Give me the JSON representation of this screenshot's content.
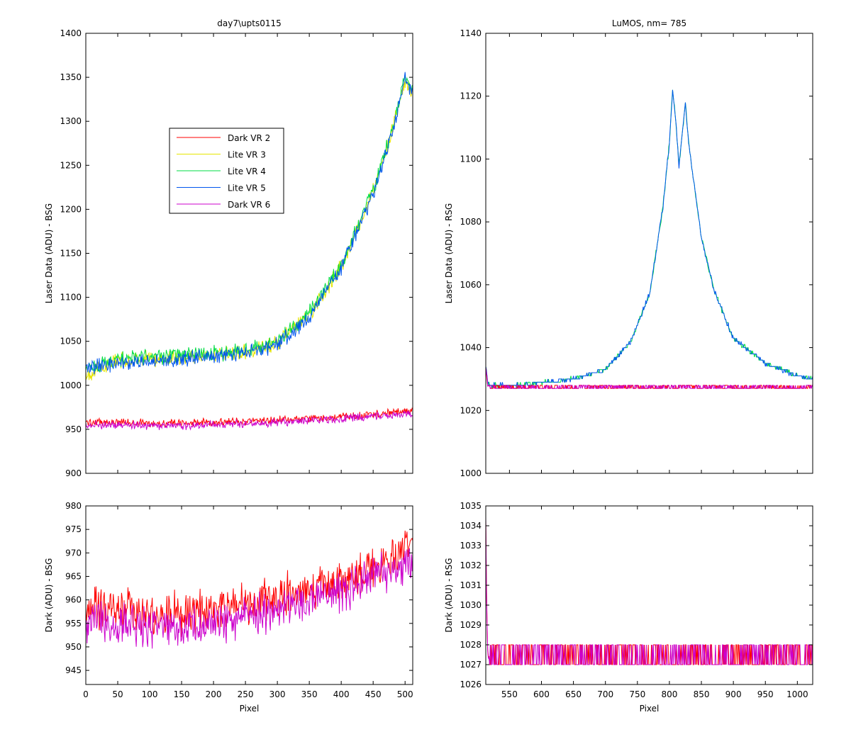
{
  "chart_data": [
    {
      "id": "tl",
      "type": "line",
      "title": "day7\\upts0115",
      "xlabel": "",
      "ylabel": "Laser Data (ADU) - BSG",
      "xlim": [
        0,
        512
      ],
      "ylim": [
        900,
        1400
      ],
      "xticks": [],
      "yticks": [
        900,
        950,
        1000,
        1050,
        1100,
        1150,
        1200,
        1250,
        1300,
        1350,
        1400
      ],
      "xtick_marks": [
        0,
        50,
        100,
        150,
        200,
        250,
        300,
        350,
        400,
        450,
        500
      ],
      "legend": {
        "placement": "upper-left-inside",
        "entries": [
          "Dark VR 2",
          "Lite VR 3",
          "Lite VR 4",
          "Lite VR 5",
          "Dark VR 6"
        ]
      },
      "series": [
        {
          "name": "Dark VR 2",
          "color": "#ff0000",
          "x": [
            0,
            50,
            100,
            150,
            200,
            250,
            300,
            350,
            400,
            450,
            512
          ],
          "y": [
            958,
            958,
            957,
            957,
            958,
            959,
            961,
            962,
            964,
            967,
            971
          ],
          "noise": 3.5
        },
        {
          "name": "Lite VR 3",
          "color": "#e6e600",
          "x": [
            0,
            50,
            100,
            150,
            200,
            250,
            300,
            350,
            400,
            450,
            480,
            500,
            512
          ],
          "y": [
            1012,
            1028,
            1030,
            1032,
            1035,
            1038,
            1048,
            1080,
            1135,
            1220,
            1290,
            1345,
            1330
          ],
          "noise": 7
        },
        {
          "name": "Lite VR 4",
          "color": "#00dd44",
          "x": [
            0,
            50,
            100,
            150,
            200,
            250,
            300,
            350,
            400,
            450,
            480,
            500,
            512
          ],
          "y": [
            1018,
            1030,
            1032,
            1034,
            1036,
            1040,
            1050,
            1082,
            1137,
            1222,
            1292,
            1350,
            1335
          ],
          "noise": 7
        },
        {
          "name": "Lite VR 5",
          "color": "#0055ee",
          "x": [
            0,
            50,
            100,
            150,
            200,
            250,
            300,
            350,
            400,
            450,
            480,
            500,
            512
          ],
          "y": [
            1020,
            1025,
            1028,
            1030,
            1033,
            1037,
            1046,
            1078,
            1133,
            1218,
            1288,
            1348,
            1332
          ],
          "noise": 7
        },
        {
          "name": "Dark VR 6",
          "color": "#cc00cc",
          "x": [
            0,
            50,
            100,
            150,
            200,
            250,
            300,
            350,
            400,
            450,
            512
          ],
          "y": [
            955,
            955,
            954,
            954,
            955,
            956,
            958,
            960,
            962,
            965,
            968
          ],
          "noise": 3.5
        }
      ]
    },
    {
      "id": "tr",
      "type": "line",
      "title": "LuMOS, nm= 785",
      "xlabel": "",
      "ylabel": "Laser Data (ADU) - RSG",
      "xlim": [
        513,
        1024
      ],
      "ylim": [
        1000,
        1140
      ],
      "xticks": [],
      "yticks": [
        1000,
        1020,
        1040,
        1060,
        1080,
        1100,
        1120,
        1140
      ],
      "xtick_marks": [
        550,
        600,
        650,
        700,
        750,
        800,
        850,
        900,
        950,
        1000
      ],
      "series": [
        {
          "name": "Lite VR 4",
          "color": "#00dd44",
          "x": [
            513,
            516,
            520,
            560,
            600,
            650,
            700,
            740,
            770,
            790,
            800,
            805,
            810,
            815,
            825,
            830,
            850,
            870,
            900,
            950,
            1000,
            1024
          ],
          "y": [
            1035,
            1029,
            1028,
            1028,
            1029,
            1030,
            1033,
            1042,
            1058,
            1085,
            1105,
            1122,
            1112,
            1098,
            1118,
            1105,
            1075,
            1058,
            1043,
            1035,
            1031,
            1030
          ],
          "noise": 0.6
        },
        {
          "name": "Lite VR 5",
          "color": "#0055ee",
          "x": [
            513,
            516,
            520,
            560,
            600,
            650,
            700,
            740,
            770,
            790,
            800,
            805,
            810,
            815,
            825,
            830,
            850,
            870,
            900,
            950,
            1000,
            1024
          ],
          "y": [
            1035,
            1029,
            1028,
            1028,
            1029,
            1030,
            1033,
            1042,
            1058,
            1085,
            1105,
            1122,
            1112,
            1098,
            1118,
            1105,
            1075,
            1058,
            1043,
            1035,
            1031,
            1030
          ],
          "noise": 0.6
        },
        {
          "name": "Dark VR 2",
          "color": "#ff0000",
          "x": [
            513,
            516,
            520,
            1024
          ],
          "y": [
            1034,
            1028,
            1027.5,
            1027.5
          ],
          "noise": 0.5
        },
        {
          "name": "Dark VR 6",
          "color": "#cc00cc",
          "x": [
            513,
            516,
            520,
            1024
          ],
          "y": [
            1034,
            1028,
            1027.5,
            1027.5
          ],
          "noise": 0.5
        }
      ]
    },
    {
      "id": "bl",
      "type": "line",
      "title": "",
      "xlabel": "Pixel",
      "ylabel": "Dark (ADU) - BSG",
      "xlim": [
        0,
        512
      ],
      "ylim": [
        942,
        980
      ],
      "xticks": [
        0,
        50,
        100,
        150,
        200,
        250,
        300,
        350,
        400,
        450,
        500
      ],
      "yticks": [
        945,
        950,
        955,
        960,
        965,
        970,
        975,
        980
      ],
      "series": [
        {
          "name": "Dark VR 2",
          "color": "#ff0000",
          "x": [
            0,
            50,
            100,
            150,
            200,
            250,
            300,
            350,
            400,
            450,
            512
          ],
          "y": [
            958,
            958,
            957,
            957,
            958,
            959,
            961,
            962,
            964,
            967,
            971
          ],
          "noise": 3.5
        },
        {
          "name": "Dark VR 6",
          "color": "#cc00cc",
          "x": [
            0,
            50,
            100,
            150,
            200,
            250,
            300,
            350,
            400,
            450,
            512
          ],
          "y": [
            955,
            955,
            954,
            954,
            955,
            956,
            958,
            960,
            962,
            965,
            968
          ],
          "noise": 3.5
        }
      ]
    },
    {
      "id": "br",
      "type": "line",
      "title": "",
      "xlabel": "Pixel",
      "ylabel": "Dark (ADU) - RSG",
      "xlim": [
        513,
        1024
      ],
      "ylim": [
        1026,
        1035
      ],
      "xticks": [
        550,
        600,
        650,
        700,
        750,
        800,
        850,
        900,
        950,
        1000
      ],
      "yticks": [
        1026,
        1027,
        1028,
        1029,
        1030,
        1031,
        1032,
        1033,
        1034,
        1035
      ],
      "series": [
        {
          "name": "Dark VR 2",
          "color": "#ff0000",
          "x": [
            513,
            514,
            515,
            516,
            518,
            1024
          ],
          "y": [
            1034,
            1031,
            1029,
            1028,
            1027.5,
            1027.5
          ],
          "noise": 0.5
        },
        {
          "name": "Dark VR 6",
          "color": "#cc00cc",
          "x": [
            513,
            514,
            515,
            516,
            518,
            1024
          ],
          "y": [
            1034,
            1031,
            1029,
            1028,
            1027.5,
            1027.5
          ],
          "noise": 0.5
        }
      ]
    }
  ]
}
